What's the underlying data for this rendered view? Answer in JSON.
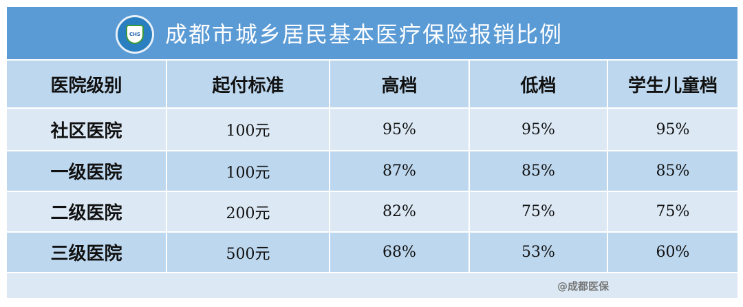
{
  "title": "成都市城乡居民基本医疗保险报销比例",
  "logo": {
    "text": "CHS"
  },
  "headers": [
    "医院级别",
    "起付标准",
    "高档",
    "低档",
    "学生儿童档"
  ],
  "rows": [
    [
      "社区医院",
      "100元",
      "95%",
      "95%",
      "95%"
    ],
    [
      "一级医院",
      "100元",
      "87%",
      "85%",
      "85%"
    ],
    [
      "二级医院",
      "200元",
      "82%",
      "75%",
      "75%"
    ],
    [
      "三级医院",
      "500元",
      "68%",
      "53%",
      "60%"
    ]
  ],
  "watermark": "@成都医保",
  "colors": {
    "title_bg": "#5b9bd5",
    "row_dark": "#bdd7ee",
    "row_light": "#dce9f5"
  }
}
